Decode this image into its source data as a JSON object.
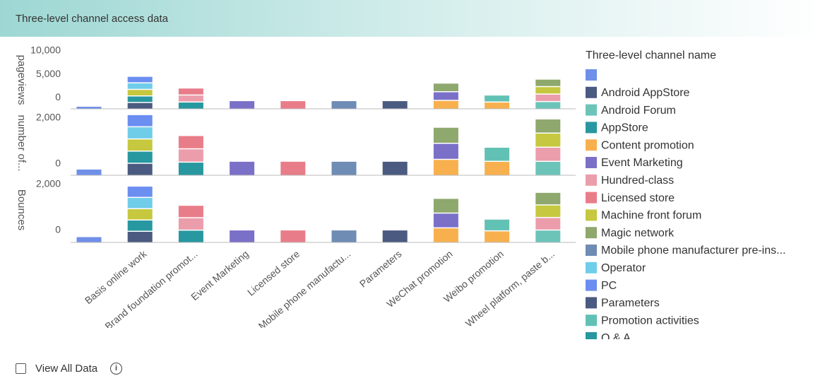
{
  "chart_data": {
    "type": "bar",
    "stacked": true,
    "title": "Three-level channel access data",
    "legend_title": "Three-level channel name",
    "categories": [
      null,
      "Basis online work",
      "Brand foundation promot...",
      "Event Marketing",
      "Licensed store",
      "Mobile phone manufactu...",
      "Parameters",
      "WeChat promotion",
      "Weibo promotion",
      "Wheel platform, paste b..."
    ],
    "panels": [
      {
        "y_label": "pageviews",
        "ylim": [
          -2400,
          10000
        ],
        "yticks": [
          0,
          {
            "value": 5000,
            "label": "5,000"
          },
          {
            "value": 10000,
            "label": "10,000"
          }
        ]
      },
      {
        "y_label": "number of...",
        "ylim": [
          -500,
          2300
        ],
        "yticks": [
          0,
          {
            "value": 2000,
            "label": "2,000"
          }
        ]
      },
      {
        "y_label": "Bounces",
        "ylim": [
          -520,
          2300
        ],
        "yticks": [
          0,
          {
            "value": 2000,
            "label": "2,000"
          }
        ]
      }
    ],
    "series": [
      {
        "name": null,
        "color": "#6f8fe8",
        "values": [
          [
            600,
            null,
            null,
            null,
            null,
            null,
            null,
            null,
            null,
            null
          ],
          [
            280,
            null,
            null,
            null,
            null,
            null,
            null,
            null,
            null,
            null
          ],
          [
            260,
            null,
            null,
            null,
            null,
            null,
            null,
            null,
            null,
            null
          ]
        ]
      },
      {
        "name": "Android AppStore",
        "color": "#4b5a80",
        "values": [
          [
            null,
            1400,
            null,
            null,
            null,
            null,
            null,
            null,
            null,
            null
          ],
          [
            null,
            530,
            null,
            null,
            null,
            null,
            null,
            null,
            null,
            null
          ],
          [
            null,
            490,
            null,
            null,
            null,
            null,
            null,
            null,
            null,
            null
          ]
        ]
      },
      {
        "name": "Android Forum",
        "color": "#6cc4b9",
        "values": [
          [
            null,
            null,
            null,
            null,
            null,
            null,
            null,
            null,
            null,
            1600
          ],
          [
            null,
            null,
            null,
            null,
            null,
            null,
            null,
            null,
            null,
            615
          ],
          [
            null,
            null,
            null,
            null,
            null,
            null,
            null,
            null,
            null,
            545
          ]
        ]
      },
      {
        "name": "AppStore",
        "color": "#2797a0",
        "values": [
          [
            null,
            1400,
            1500,
            null,
            null,
            null,
            null,
            null,
            null,
            null
          ],
          [
            null,
            530,
            580,
            null,
            null,
            null,
            null,
            null,
            null,
            null
          ],
          [
            null,
            490,
            540,
            null,
            null,
            null,
            null,
            null,
            null,
            null
          ]
        ]
      },
      {
        "name": "Content promotion",
        "color": "#f8b04e",
        "values": [
          [
            null,
            null,
            null,
            null,
            null,
            null,
            null,
            1850,
            1500,
            null
          ],
          [
            null,
            null,
            null,
            null,
            null,
            null,
            null,
            700,
            615,
            null
          ],
          [
            null,
            null,
            null,
            null,
            null,
            null,
            null,
            640,
            510,
            null
          ]
        ]
      },
      {
        "name": "Event Marketing",
        "color": "#7b70c8",
        "values": [
          [
            null,
            null,
            null,
            1800,
            null,
            null,
            null,
            1850,
            null,
            null
          ],
          [
            null,
            null,
            null,
            620,
            null,
            null,
            null,
            700,
            null,
            null
          ],
          [
            null,
            null,
            null,
            550,
            null,
            null,
            null,
            640,
            null,
            null
          ]
        ]
      },
      {
        "name": "Hundred-class",
        "color": "#eb9dab",
        "values": [
          [
            null,
            null,
            1500,
            null,
            null,
            null,
            null,
            null,
            null,
            1600
          ],
          [
            null,
            null,
            580,
            null,
            null,
            null,
            null,
            null,
            null,
            615
          ],
          [
            null,
            null,
            540,
            null,
            null,
            null,
            null,
            null,
            null,
            545
          ]
        ]
      },
      {
        "name": "Licensed store",
        "color": "#e87d89",
        "values": [
          [
            null,
            null,
            1500,
            null,
            1800,
            null,
            null,
            null,
            null,
            null
          ],
          [
            null,
            null,
            580,
            null,
            620,
            null,
            null,
            null,
            null,
            null
          ],
          [
            null,
            null,
            540,
            null,
            550,
            null,
            null,
            null,
            null,
            null
          ]
        ]
      },
      {
        "name": "Machine front forum",
        "color": "#c6c83f",
        "values": [
          [
            null,
            1400,
            null,
            null,
            null,
            null,
            null,
            null,
            null,
            1600
          ],
          [
            null,
            530,
            null,
            null,
            null,
            null,
            null,
            null,
            null,
            615
          ],
          [
            null,
            490,
            null,
            null,
            null,
            null,
            null,
            null,
            null,
            545
          ]
        ]
      },
      {
        "name": "Magic network",
        "color": "#8ea86d",
        "values": [
          [
            null,
            null,
            null,
            null,
            null,
            null,
            null,
            1850,
            null,
            1600
          ],
          [
            null,
            null,
            null,
            null,
            null,
            null,
            null,
            700,
            null,
            615
          ],
          [
            null,
            null,
            null,
            null,
            null,
            null,
            null,
            640,
            null,
            545
          ]
        ]
      },
      {
        "name": "Mobile phone manufacturer pre-ins...",
        "color": "#6e8cb4",
        "values": [
          [
            null,
            null,
            null,
            null,
            null,
            1800,
            null,
            null,
            null,
            null
          ],
          [
            null,
            null,
            null,
            null,
            null,
            620,
            null,
            null,
            null,
            null
          ],
          [
            null,
            null,
            null,
            null,
            null,
            550,
            null,
            null,
            null,
            null
          ]
        ]
      },
      {
        "name": "Operator",
        "color": "#70cdea",
        "values": [
          [
            null,
            1400,
            null,
            null,
            null,
            null,
            null,
            null,
            null,
            null
          ],
          [
            null,
            530,
            null,
            null,
            null,
            null,
            null,
            null,
            null,
            null
          ],
          [
            null,
            490,
            null,
            null,
            null,
            null,
            null,
            null,
            null,
            null
          ]
        ]
      },
      {
        "name": "PC",
        "color": "#6b8ef0",
        "values": [
          [
            null,
            1400,
            null,
            null,
            null,
            null,
            null,
            null,
            null,
            null
          ],
          [
            null,
            530,
            null,
            null,
            null,
            null,
            null,
            null,
            null,
            null
          ],
          [
            null,
            490,
            null,
            null,
            null,
            null,
            null,
            null,
            null,
            null
          ]
        ]
      },
      {
        "name": "Parameters",
        "color": "#4b5a80",
        "values": [
          [
            null,
            null,
            null,
            null,
            null,
            null,
            1800,
            null,
            null,
            null
          ],
          [
            null,
            null,
            null,
            null,
            null,
            null,
            620,
            null,
            null,
            null
          ],
          [
            null,
            null,
            null,
            null,
            null,
            null,
            550,
            null,
            null,
            null
          ]
        ]
      },
      {
        "name": "Promotion activities",
        "color": "#62c1b5",
        "values": [
          [
            null,
            null,
            null,
            null,
            null,
            null,
            null,
            null,
            1500,
            null
          ],
          [
            null,
            null,
            null,
            null,
            null,
            null,
            null,
            null,
            615,
            null
          ],
          [
            null,
            null,
            null,
            null,
            null,
            null,
            null,
            null,
            510,
            null
          ]
        ]
      },
      {
        "name": "Q & A",
        "color": "#2797a0",
        "values": [
          [
            null,
            null,
            null,
            null,
            null,
            null,
            null,
            null,
            null,
            null
          ],
          [
            null,
            null,
            null,
            null,
            null,
            null,
            null,
            null,
            null,
            null
          ],
          [
            null,
            null,
            null,
            null,
            null,
            null,
            null,
            null,
            null,
            null
          ]
        ]
      }
    ]
  },
  "footer": {
    "checkbox_label": "View All Data"
  }
}
